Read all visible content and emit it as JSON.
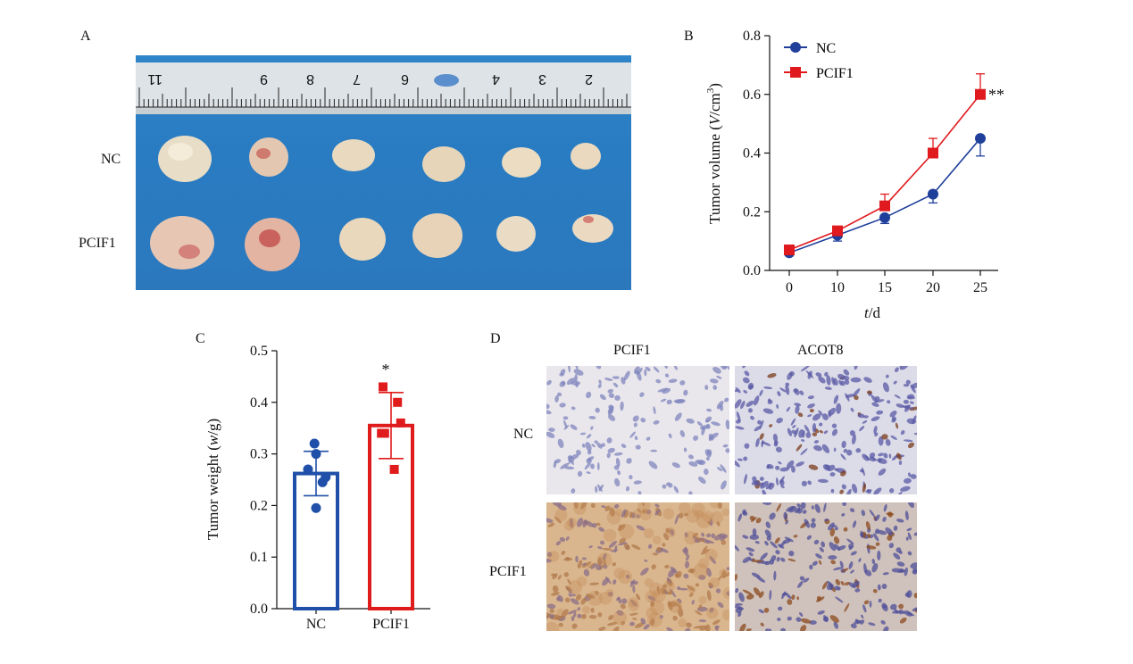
{
  "panel_a": {
    "letter": "A",
    "row_labels": [
      "NC",
      "PCIF1"
    ],
    "ruler_numbers": [
      "11",
      "9",
      "8",
      "7",
      "6",
      "4",
      "3",
      "2"
    ]
  },
  "panel_b": {
    "letter": "B",
    "ylabel_main": "Tumor volume (",
    "ylabel_italic": "V",
    "ylabel_unit": "/cm",
    "ylabel_sup": "3",
    "ylabel_close": ")",
    "xlabel_italic": "t",
    "xlabel_unit": "/d",
    "significance": "**"
  },
  "panel_c": {
    "letter": "C",
    "ylabel_main": "Tumor weight (",
    "ylabel_italic": "w",
    "ylabel_unit": "/g)",
    "significance": "*"
  },
  "panel_d": {
    "letter": "D",
    "col_labels": [
      "PCIF1",
      "ACOT8"
    ],
    "row_labels": [
      "NC",
      "PCIF1"
    ]
  },
  "chart_data": [
    {
      "type": "line",
      "panel": "B",
      "x": [
        0,
        10,
        15,
        20,
        25
      ],
      "xticks": [
        "0",
        "10",
        "15",
        "20",
        "25"
      ],
      "ylim": [
        0.0,
        0.8
      ],
      "yticks": [
        "0.0",
        "0.2",
        "0.4",
        "0.6",
        "0.8"
      ],
      "legend_placement": "top-left",
      "series": [
        {
          "name": "NC",
          "color": "#1f3f9a",
          "marker": "circle",
          "values": [
            0.06,
            0.12,
            0.18,
            0.26,
            0.45
          ],
          "errors": [
            0.01,
            0.02,
            0.02,
            0.03,
            0.06
          ]
        },
        {
          "name": "PCIF1",
          "color": "#e0191e",
          "marker": "square",
          "values": [
            0.07,
            0.135,
            0.22,
            0.4,
            0.6
          ],
          "errors": [
            0.01,
            0.015,
            0.04,
            0.05,
            0.07
          ]
        }
      ]
    },
    {
      "type": "bar",
      "panel": "C",
      "categories": [
        "NC",
        "PCIF1"
      ],
      "values": [
        0.262,
        0.355
      ],
      "errors": [
        0.043,
        0.064
      ],
      "colors": [
        "#1f4fa8",
        "#e01b1b"
      ],
      "points": [
        [
          0.32,
          0.3,
          0.27,
          0.255,
          0.245,
          0.195
        ],
        [
          0.43,
          0.4,
          0.36,
          0.34,
          0.34,
          0.27
        ]
      ],
      "ylim": [
        0.0,
        0.5
      ],
      "yticks": [
        "0.0",
        "0.1",
        "0.2",
        "0.3",
        "0.4",
        "0.5"
      ]
    }
  ]
}
